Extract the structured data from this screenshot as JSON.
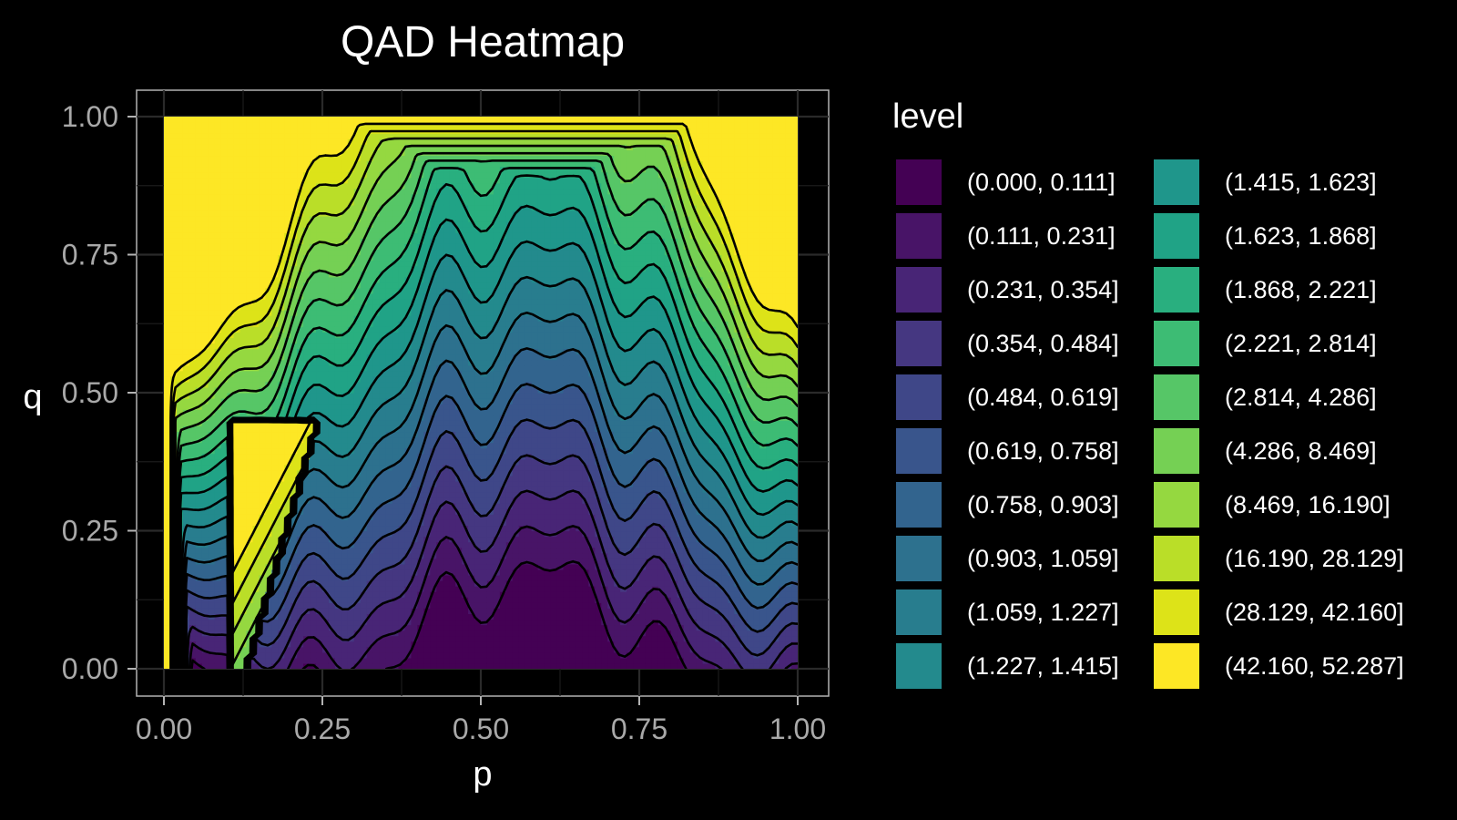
{
  "chart_data": {
    "type": "heatmap",
    "title": "QAD Heatmap",
    "xlabel": "p",
    "ylabel": "q",
    "xlim": [
      0,
      1
    ],
    "ylim": [
      0,
      1
    ],
    "x_ticks": [
      "0.00",
      "0.25",
      "0.50",
      "0.75",
      "1.00"
    ],
    "y_ticks": [
      "0.00",
      "0.25",
      "0.50",
      "0.75",
      "1.00"
    ],
    "grid": true,
    "legend_title": "level",
    "legend_position": "right",
    "levels": [
      {
        "label": "(0.000, 0.111]",
        "color": "#440154"
      },
      {
        "label": "(0.111, 0.231]",
        "color": "#481467"
      },
      {
        "label": "(0.231, 0.354]",
        "color": "#482576"
      },
      {
        "label": "(0.354, 0.484]",
        "color": "#453781"
      },
      {
        "label": "(0.484, 0.619]",
        "color": "#3f4788"
      },
      {
        "label": "(0.619, 0.758]",
        "color": "#39558c"
      },
      {
        "label": "(0.758, 0.903]",
        "color": "#32648e"
      },
      {
        "label": "(0.903, 1.059]",
        "color": "#2d718e"
      },
      {
        "label": "(1.059, 1.227]",
        "color": "#287d8e"
      },
      {
        "label": "(1.227, 1.415]",
        "color": "#238a8d"
      },
      {
        "label": "(1.415, 1.623]",
        "color": "#1f968b"
      },
      {
        "label": "(1.623, 1.868]",
        "color": "#20a386"
      },
      {
        "label": "(1.868, 2.221]",
        "color": "#29af7f"
      },
      {
        "label": "(2.221, 2.814]",
        "color": "#3dbc74"
      },
      {
        "label": "(2.814, 4.286]",
        "color": "#56c667"
      },
      {
        "label": "(4.286, 8.469]",
        "color": "#75d054"
      },
      {
        "label": "(8.469, 16.190]",
        "color": "#95d840"
      },
      {
        "label": "(16.190, 28.129]",
        "color": "#bade28"
      },
      {
        "label": "(28.129, 42.160]",
        "color": "#dde318"
      },
      {
        "label": "(42.160, 52.287]",
        "color": "#fde725"
      }
    ]
  }
}
